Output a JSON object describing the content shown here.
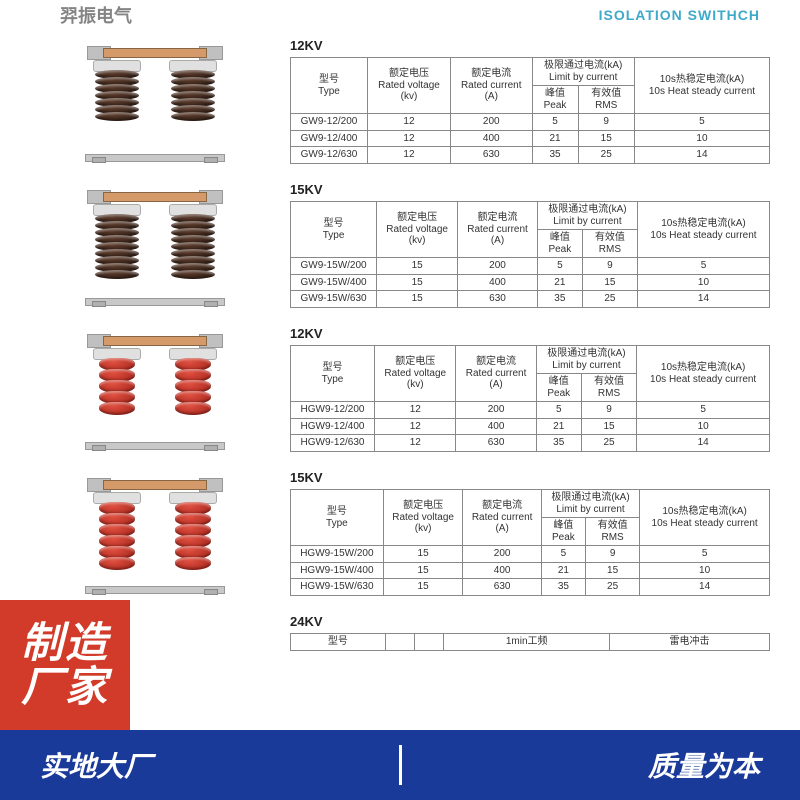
{
  "header": {
    "left": "羿振电气",
    "right": "ISOLATION SWITHCH"
  },
  "columns": {
    "type_zh": "型号",
    "type_en": "Type",
    "voltage_zh": "额定电压",
    "voltage_en": "Rated voltage",
    "voltage_unit": "(kv)",
    "current_zh": "额定电流",
    "current_en": "Rated current",
    "current_unit": "(A)",
    "limit_zh": "极限通过电流(kA)",
    "limit_en": "Limit by current",
    "peak_zh": "峰值",
    "peak_en": "Peak",
    "rms_zh": "有效值",
    "rms_en": "RMS",
    "heat_zh": "10s热稳定电流(kA)",
    "heat_en": "10s Heat steady current"
  },
  "sections": [
    {
      "title": "12KV",
      "variant": "brown",
      "discs": 7,
      "rows": [
        {
          "type": "GW9-12/200",
          "v": "12",
          "a": "200",
          "peak": "5",
          "rms": "9",
          "heat": "5"
        },
        {
          "type": "GW9-12/400",
          "v": "12",
          "a": "400",
          "peak": "21",
          "rms": "15",
          "heat": "10"
        },
        {
          "type": "GW9-12/630",
          "v": "12",
          "a": "630",
          "peak": "35",
          "rms": "25",
          "heat": "14"
        }
      ]
    },
    {
      "title": "15KV",
      "variant": "brown",
      "discs": 9,
      "rows": [
        {
          "type": "GW9-15W/200",
          "v": "15",
          "a": "200",
          "peak": "5",
          "rms": "9",
          "heat": "5"
        },
        {
          "type": "GW9-15W/400",
          "v": "15",
          "a": "400",
          "peak": "21",
          "rms": "15",
          "heat": "10"
        },
        {
          "type": "GW9-15W/630",
          "v": "15",
          "a": "630",
          "peak": "35",
          "rms": "25",
          "heat": "14"
        }
      ]
    },
    {
      "title": "12KV",
      "variant": "red",
      "discs": 5,
      "rows": [
        {
          "type": "HGW9-12/200",
          "v": "12",
          "a": "200",
          "peak": "5",
          "rms": "9",
          "heat": "5"
        },
        {
          "type": "HGW9-12/400",
          "v": "12",
          "a": "400",
          "peak": "21",
          "rms": "15",
          "heat": "10"
        },
        {
          "type": "HGW9-12/630",
          "v": "12",
          "a": "630",
          "peak": "35",
          "rms": "25",
          "heat": "14"
        }
      ]
    },
    {
      "title": "15KV",
      "variant": "red",
      "discs": 6,
      "rows": [
        {
          "type": "HGW9-15W/200",
          "v": "15",
          "a": "200",
          "peak": "5",
          "rms": "9",
          "heat": "5"
        },
        {
          "type": "HGW9-15W/400",
          "v": "15",
          "a": "400",
          "peak": "21",
          "rms": "15",
          "heat": "10"
        },
        {
          "type": "HGW9-15W/630",
          "v": "15",
          "a": "630",
          "peak": "35",
          "rms": "25",
          "heat": "14"
        }
      ]
    }
  ],
  "section24": {
    "title": "24KV",
    "cols": [
      "型号",
      "",
      "",
      "1min工频",
      "雷电冲击"
    ]
  },
  "badge": {
    "line1": "制造",
    "line2": "厂家"
  },
  "footer": {
    "left": "实地大厂",
    "right": "质量为本"
  },
  "colors": {
    "accent_blue": "#1a3a9a",
    "badge_red": "#d23b2a",
    "header_teal": "#3fa9c9"
  }
}
